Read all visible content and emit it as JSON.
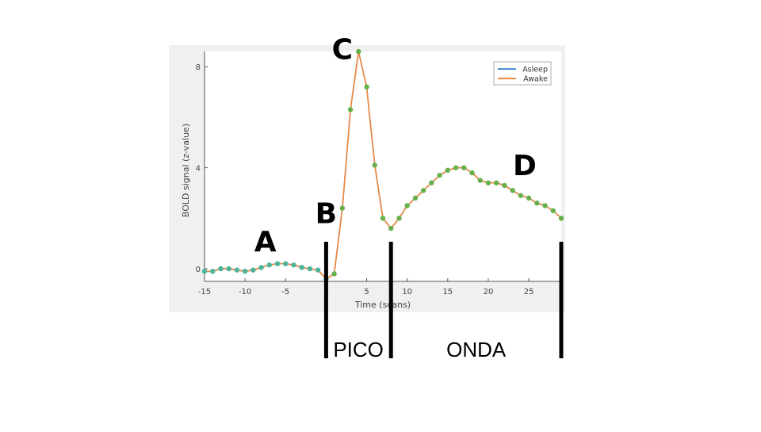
{
  "colors": {
    "panel": "#f0f0f0",
    "axes_bg": "#ffffff",
    "asleep": "#4a90d9",
    "awake": "#f2883a",
    "marker": "#66b04c",
    "marker_pre": "#4db39a",
    "annotation": "#000000"
  },
  "chart_data": {
    "type": "line",
    "xlabel": "Time (scans)",
    "ylabel": "BOLD signal (z-value)",
    "xlim": [
      -15,
      29
    ],
    "ylim": [
      -0.5,
      8.6
    ],
    "xticks": [
      -15,
      -10,
      -5,
      0,
      5,
      10,
      15,
      20,
      25
    ],
    "yticks": [
      0,
      4,
      8
    ],
    "grid": false,
    "legend": {
      "placement": "top-right",
      "entries": [
        "Asleep",
        "Awake"
      ]
    },
    "series": [
      {
        "name": "Asleep",
        "x": [
          -15,
          -14,
          -13,
          -12,
          -11,
          -10,
          -9,
          -8,
          -7,
          -6,
          -5,
          -4,
          -3,
          -2,
          -1,
          0,
          1,
          2,
          3,
          4,
          5,
          6,
          7,
          8,
          9,
          10,
          11,
          12,
          13,
          14,
          15,
          16,
          17,
          18,
          19,
          20,
          21,
          22,
          23,
          24,
          25,
          26,
          27,
          28,
          29
        ],
        "y": [
          -0.1,
          -0.1,
          0.0,
          0.0,
          -0.05,
          -0.1,
          -0.05,
          0.05,
          0.15,
          0.2,
          0.2,
          0.15,
          0.05,
          0.0,
          -0.05,
          -0.4,
          -0.2,
          2.4,
          6.3,
          8.6,
          7.2,
          4.1,
          2.0,
          1.6,
          2.0,
          2.5,
          2.8,
          3.1,
          3.4,
          3.7,
          3.9,
          4.0,
          4.0,
          3.8,
          3.5,
          3.4,
          3.4,
          3.3,
          3.1,
          2.9,
          2.8,
          2.6,
          2.5,
          2.3,
          2.0
        ]
      },
      {
        "name": "Awake",
        "x": [
          -15,
          -14,
          -13,
          -12,
          -11,
          -10,
          -9,
          -8,
          -7,
          -6,
          -5,
          -4,
          -3,
          -2,
          -1,
          0,
          1,
          2,
          3,
          4,
          5,
          6,
          7,
          8,
          9,
          10,
          11,
          12,
          13,
          14,
          15,
          16,
          17,
          18,
          19,
          20,
          21,
          22,
          23,
          24,
          25,
          26,
          27,
          28,
          29
        ],
        "y": [
          -0.1,
          -0.1,
          0.0,
          0.0,
          -0.05,
          -0.1,
          -0.05,
          0.05,
          0.15,
          0.2,
          0.2,
          0.15,
          0.05,
          0.0,
          -0.05,
          -0.4,
          -0.2,
          2.4,
          6.3,
          8.6,
          7.2,
          4.1,
          2.0,
          1.6,
          2.0,
          2.5,
          2.8,
          3.1,
          3.4,
          3.7,
          3.9,
          4.0,
          4.0,
          3.8,
          3.5,
          3.4,
          3.4,
          3.3,
          3.1,
          2.9,
          2.8,
          2.6,
          2.5,
          2.3,
          2.0
        ]
      }
    ],
    "annotations": [
      {
        "text": "A",
        "x": -7.5,
        "y": 0.7
      },
      {
        "text": "B",
        "x": 0.0,
        "y": 1.8
      },
      {
        "text": "C",
        "x": 2.0,
        "y": 8.3
      },
      {
        "text": "D",
        "x": 24.5,
        "y": 3.7
      }
    ]
  },
  "slide": {
    "markers": [
      0,
      8,
      29
    ],
    "labels": [
      {
        "text": "PICO",
        "from": 0,
        "to": 8
      },
      {
        "text": "ONDA",
        "from": 8,
        "to": 29
      }
    ]
  }
}
